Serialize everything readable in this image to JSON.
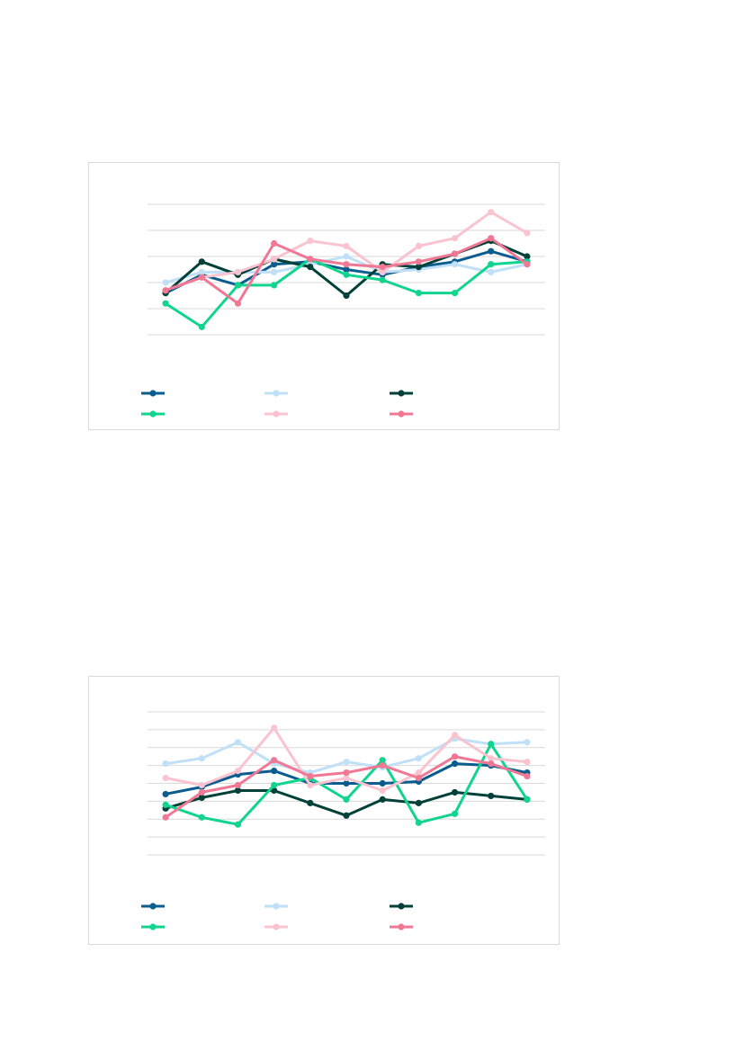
{
  "colors": {
    "gridline": "#d9d9d9",
    "frame_border": "#d9d9d9",
    "background": "#ffffff"
  },
  "chart_data": [
    {
      "type": "line",
      "title": "",
      "xlabel": "",
      "ylabel": "",
      "ylim": [
        0,
        5
      ],
      "grid": true,
      "legend_position": "bottom",
      "x": [
        1,
        2,
        3,
        4,
        5,
        6,
        7,
        8,
        9,
        10,
        11
      ],
      "series": [
        {
          "color": "#0b5d8f",
          "values": [
            1.6,
            2.3,
            1.9,
            2.7,
            2.8,
            2.5,
            2.3,
            2.6,
            2.8,
            3.2,
            2.8
          ]
        },
        {
          "color": "#bfe0f7",
          "values": [
            2.0,
            2.4,
            2.4,
            2.4,
            2.7,
            3.0,
            2.4,
            2.5,
            2.7,
            2.4,
            2.7
          ]
        },
        {
          "color": "#024139",
          "values": [
            1.6,
            2.8,
            2.3,
            2.9,
            2.6,
            1.5,
            2.7,
            2.6,
            3.1,
            3.6,
            3.0
          ]
        },
        {
          "color": "#11d48f",
          "values": [
            1.2,
            0.3,
            1.9,
            1.9,
            2.9,
            2.3,
            2.1,
            1.6,
            1.6,
            2.7,
            2.8
          ]
        },
        {
          "color": "#f9c4d0",
          "values": [
            1.7,
            2.2,
            2.4,
            2.9,
            3.6,
            3.4,
            2.4,
            3.4,
            3.7,
            4.7,
            3.9
          ]
        },
        {
          "color": "#f07894",
          "values": [
            1.7,
            2.2,
            1.2,
            3.5,
            2.9,
            2.7,
            2.6,
            2.8,
            3.1,
            3.7,
            2.7
          ]
        }
      ]
    },
    {
      "type": "line",
      "title": "",
      "xlabel": "",
      "ylabel": "",
      "ylim": [
        0,
        8
      ],
      "grid": true,
      "legend_position": "bottom",
      "x": [
        1,
        2,
        3,
        4,
        5,
        6,
        7,
        8,
        9,
        10,
        11
      ],
      "series": [
        {
          "color": "#0b5d8f",
          "values": [
            3.4,
            3.8,
            4.5,
            4.7,
            4.0,
            4.0,
            4.0,
            4.1,
            5.1,
            5.0,
            4.6
          ]
        },
        {
          "color": "#bfe0f7",
          "values": [
            5.1,
            5.4,
            6.3,
            5.1,
            4.6,
            5.2,
            4.9,
            5.4,
            6.5,
            6.2,
            6.3
          ]
        },
        {
          "color": "#024139",
          "values": [
            2.6,
            3.2,
            3.6,
            3.6,
            2.9,
            2.2,
            3.1,
            2.9,
            3.5,
            3.3,
            3.1
          ]
        },
        {
          "color": "#11d48f",
          "values": [
            2.8,
            2.1,
            1.7,
            3.9,
            4.3,
            3.1,
            5.3,
            1.8,
            2.3,
            6.2,
            3.1
          ]
        },
        {
          "color": "#f9c4d0",
          "values": [
            4.3,
            3.9,
            4.7,
            7.1,
            3.9,
            4.3,
            3.6,
            4.6,
            6.7,
            5.4,
            5.2
          ]
        },
        {
          "color": "#f07894",
          "values": [
            2.1,
            3.5,
            3.9,
            5.3,
            4.4,
            4.6,
            5.0,
            4.3,
            5.5,
            5.1,
            4.4
          ]
        }
      ]
    }
  ]
}
